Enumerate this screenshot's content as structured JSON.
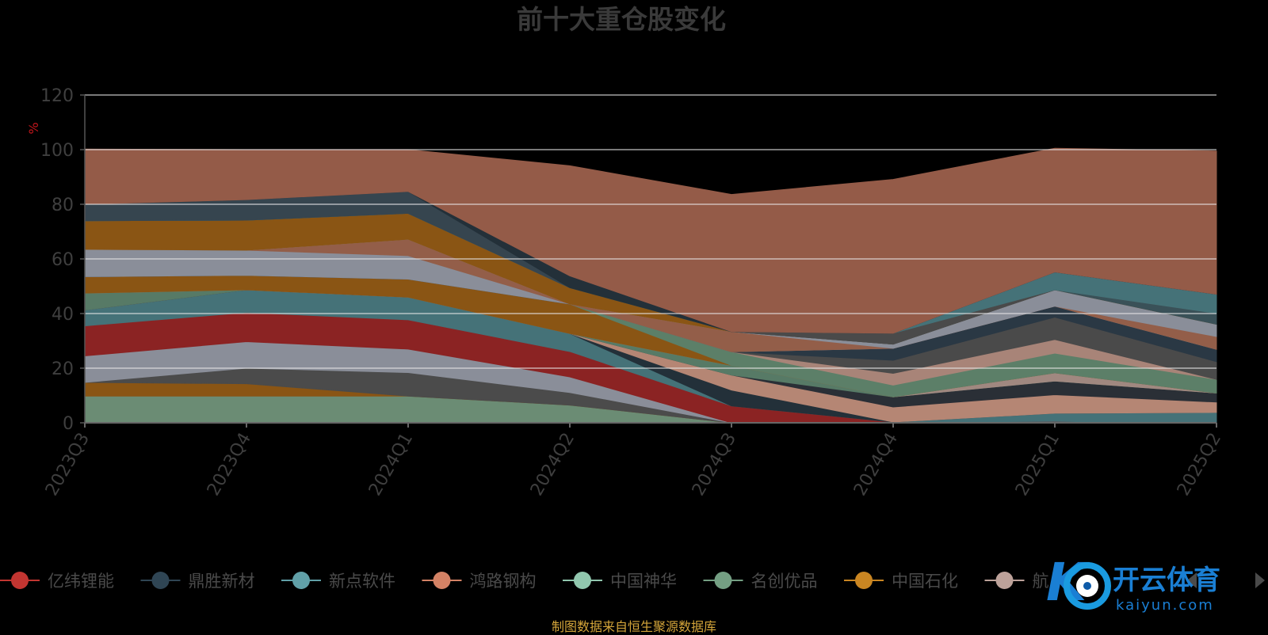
{
  "chart_data": {
    "type": "area",
    "title": "前十大重仓股变化",
    "ylabel": "%",
    "ylim": [
      0,
      120
    ],
    "yticks": [
      0,
      20,
      40,
      60,
      80,
      100,
      120
    ],
    "x": [
      "2023Q3",
      "2023Q4",
      "2024Q1",
      "2024Q2",
      "2024Q3",
      "2024Q4",
      "2025Q1",
      "2025Q2"
    ],
    "stacked": true,
    "grid": true,
    "legend_position": "bottom",
    "series": [
      {
        "name": "",
        "color": "#6b8c74",
        "values": [
          9.8,
          9.8,
          9.8,
          6.5,
          0,
          0,
          0,
          0
        ]
      },
      {
        "name": "",
        "color": "#8a5514",
        "values": [
          5.0,
          4.5,
          0,
          0,
          0,
          0,
          0,
          0
        ]
      },
      {
        "name": "",
        "color": "#4b4b4b",
        "values": [
          0,
          5.7,
          8.6,
          4.6,
          0,
          0,
          0,
          0
        ]
      },
      {
        "name": "",
        "color": "#8a8e99",
        "values": [
          9.7,
          9.7,
          8.6,
          5.7,
          0,
          0,
          0,
          0
        ]
      },
      {
        "name": "亿纬锂能",
        "color": "#8b2323",
        "values": [
          11.0,
          10.7,
          10.7,
          9.3,
          6.2,
          0.3,
          0.5,
          0
        ]
      },
      {
        "name": "",
        "color": "#457278",
        "values": [
          5.8,
          8.3,
          8.3,
          6.6,
          0,
          0,
          3.0,
          3.8
        ]
      },
      {
        "name": "",
        "color": "#233039",
        "values": [
          0,
          0,
          0,
          0,
          5.8,
          0,
          0,
          0
        ]
      },
      {
        "name": "",
        "color": "#b58674",
        "values": [
          0,
          0,
          0,
          0,
          5.5,
          5.5,
          6.8,
          3.8
        ]
      },
      {
        "name": "",
        "color": "#2a2f36",
        "values": [
          0,
          0,
          0,
          0,
          0,
          3.7,
          5.0,
          3.3
        ]
      },
      {
        "name": "",
        "color": "#577a66",
        "values": [
          6.2,
          0,
          0,
          0,
          3.5,
          0,
          0,
          0
        ]
      },
      {
        "name": "",
        "color": "#a08880",
        "values": [
          0,
          0,
          0,
          0,
          0,
          0,
          3.0,
          0
        ]
      },
      {
        "name": "",
        "color": "#8a5514",
        "values": [
          6.0,
          5.3,
          6.6,
          10.8,
          0,
          0,
          0,
          0
        ]
      },
      {
        "name": "",
        "color": "#5c7f68",
        "values": [
          0,
          0,
          0,
          0,
          5.0,
          4.3,
          7.2,
          5.0
        ]
      },
      {
        "name": "",
        "color": "#a88478",
        "values": [
          0,
          0,
          0,
          0,
          0,
          4.3,
          5.0,
          0
        ]
      },
      {
        "name": "",
        "color": "#4a4a4a",
        "values": [
          0,
          0,
          0,
          0,
          0,
          4.8,
          8.2,
          6.5
        ]
      },
      {
        "name": "",
        "color": "#2a3844",
        "values": [
          0,
          0,
          0,
          0,
          0,
          4.4,
          4.0,
          4.5
        ]
      },
      {
        "name": "",
        "color": "#8a8e99",
        "values": [
          10.0,
          9.2,
          8.6,
          0,
          0,
          0,
          0,
          0
        ]
      },
      {
        "name": "",
        "color": "#935e49",
        "values": [
          0,
          0,
          6.0,
          0,
          7.4,
          0,
          0,
          4.7
        ]
      },
      {
        "name": "",
        "color": "#8a8e99",
        "values": [
          0,
          0,
          0,
          0,
          0,
          1.5,
          6.0,
          4.5
        ]
      },
      {
        "name": "",
        "color": "#8a5514",
        "values": [
          10.5,
          11.0,
          9.5,
          6.0,
          0,
          0,
          0,
          0
        ]
      },
      {
        "name": "",
        "color": "#3a5158",
        "values": [
          0,
          0,
          0,
          0,
          0,
          0,
          0,
          4.0
        ]
      },
      {
        "name": "",
        "color": "#4a4a4a",
        "values": [
          0,
          0,
          0,
          0,
          0,
          4.0,
          0,
          0
        ]
      },
      {
        "name": "",
        "color": "#457278",
        "values": [
          0,
          0,
          0,
          0,
          0,
          0,
          6.5,
          7.0
        ]
      },
      {
        "name": "",
        "color": "#36454f",
        "values": [
          6.0,
          7.5,
          8.0,
          0,
          0,
          0,
          0,
          0
        ]
      },
      {
        "name": "",
        "color": "#233039",
        "values": [
          0,
          0,
          0,
          4.3,
          0,
          0,
          0,
          0
        ]
      },
      {
        "name": "",
        "color": "#945b48",
        "values": [
          20.2,
          18.3,
          15.3,
          40.3,
          50.2,
          56.3,
          45.3,
          52.4
        ]
      }
    ]
  },
  "legend": [
    {
      "name": "亿纬锂能",
      "color": "#c23531"
    },
    {
      "name": "鼎胜新材",
      "color": "#2f4554"
    },
    {
      "name": "新点软件",
      "color": "#61a0a8"
    },
    {
      "name": "鸿路钢构",
      "color": "#d48265"
    },
    {
      "name": "中国神华",
      "color": "#91c7ae"
    },
    {
      "name": "名创优品",
      "color": "#749f83"
    },
    {
      "name": "中国石化",
      "color": "#ca8622"
    },
    {
      "name": "航",
      "color": "#bda29a"
    }
  ],
  "source_text": "制图数据来自恒生聚源数据库",
  "watermark": {
    "brand": "开云体育",
    "sub": "kaiyun.com"
  }
}
